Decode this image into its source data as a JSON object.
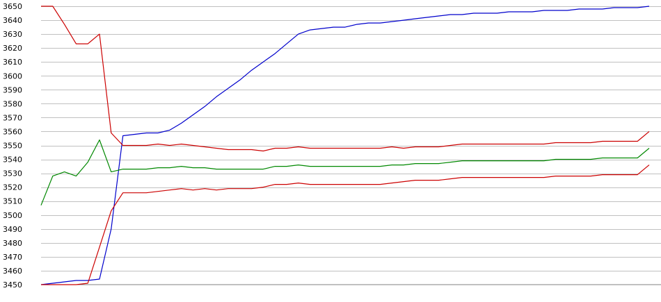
{
  "chart_data": {
    "type": "line",
    "title": "",
    "xlabel": "",
    "ylabel": "",
    "ylim": [
      3450,
      3650
    ],
    "yticks": [
      3450,
      3460,
      3470,
      3480,
      3490,
      3500,
      3510,
      3520,
      3530,
      3540,
      3550,
      3560,
      3570,
      3580,
      3590,
      3600,
      3610,
      3620,
      3630,
      3640,
      3650
    ],
    "grid": true,
    "legend": "none",
    "x": [
      0,
      1,
      2,
      3,
      4,
      5,
      6,
      7,
      8,
      9,
      10,
      11,
      12,
      13,
      14,
      15,
      16,
      17,
      18,
      19,
      20,
      21,
      22,
      23,
      24,
      25,
      26,
      27,
      28,
      29,
      30,
      31,
      32,
      33,
      34,
      35,
      36,
      37,
      38,
      39,
      40,
      41,
      42,
      43,
      44,
      45,
      46,
      47,
      48,
      49,
      50,
      51,
      52
    ],
    "series": [
      {
        "color": "#0000cc",
        "values": [
          3450,
          3451,
          3452,
          3453,
          3453,
          3454,
          3490,
          3557,
          3558,
          3559,
          3559,
          3561,
          3566,
          3572,
          3578,
          3585,
          3591,
          3597,
          3604,
          3610,
          3616,
          3623,
          3630,
          3633,
          3634,
          3635,
          3635,
          3637,
          3638,
          3638,
          3639,
          3640,
          3641,
          3642,
          3643,
          3644,
          3644,
          3645,
          3645,
          3645,
          3646,
          3646,
          3646,
          3647,
          3647,
          3647,
          3648,
          3648,
          3648,
          3649,
          3649,
          3649,
          3650
        ]
      },
      {
        "color": "#cc0000",
        "values": [
          3650,
          3650,
          3637,
          3623,
          3623,
          3630,
          3559,
          3550,
          3550,
          3550,
          3551,
          3550,
          3551,
          3550,
          3549,
          3548,
          3547,
          3547,
          3547,
          3546,
          3548,
          3548,
          3549,
          3548,
          3548,
          3548,
          3548,
          3548,
          3548,
          3548,
          3549,
          3548,
          3549,
          3549,
          3549,
          3550,
          3551,
          3551,
          3551,
          3551,
          3551,
          3551,
          3551,
          3551,
          3552,
          3552,
          3552,
          3552,
          3553,
          3553,
          3553,
          3553,
          3560
        ]
      },
      {
        "color": "#008800",
        "values": [
          3507,
          3528,
          3531,
          3528,
          3538,
          3554,
          3531,
          3533,
          3533,
          3533,
          3534,
          3534,
          3535,
          3534,
          3534,
          3533,
          3533,
          3533,
          3533,
          3533,
          3535,
          3535,
          3536,
          3535,
          3535,
          3535,
          3535,
          3535,
          3535,
          3535,
          3536,
          3536,
          3537,
          3537,
          3537,
          3538,
          3539,
          3539,
          3539,
          3539,
          3539,
          3539,
          3539,
          3539,
          3540,
          3540,
          3540,
          3540,
          3541,
          3541,
          3541,
          3541,
          3548
        ]
      },
      {
        "color": "#cc0000",
        "values": [
          3450,
          3450,
          3450,
          3450,
          3451,
          3477,
          3503,
          3516,
          3516,
          3516,
          3517,
          3518,
          3519,
          3518,
          3519,
          3518,
          3519,
          3519,
          3519,
          3520,
          3522,
          3522,
          3523,
          3522,
          3522,
          3522,
          3522,
          3522,
          3522,
          3522,
          3523,
          3524,
          3525,
          3525,
          3525,
          3526,
          3527,
          3527,
          3527,
          3527,
          3527,
          3527,
          3527,
          3527,
          3528,
          3528,
          3528,
          3528,
          3529,
          3529,
          3529,
          3529,
          3536
        ]
      }
    ]
  }
}
